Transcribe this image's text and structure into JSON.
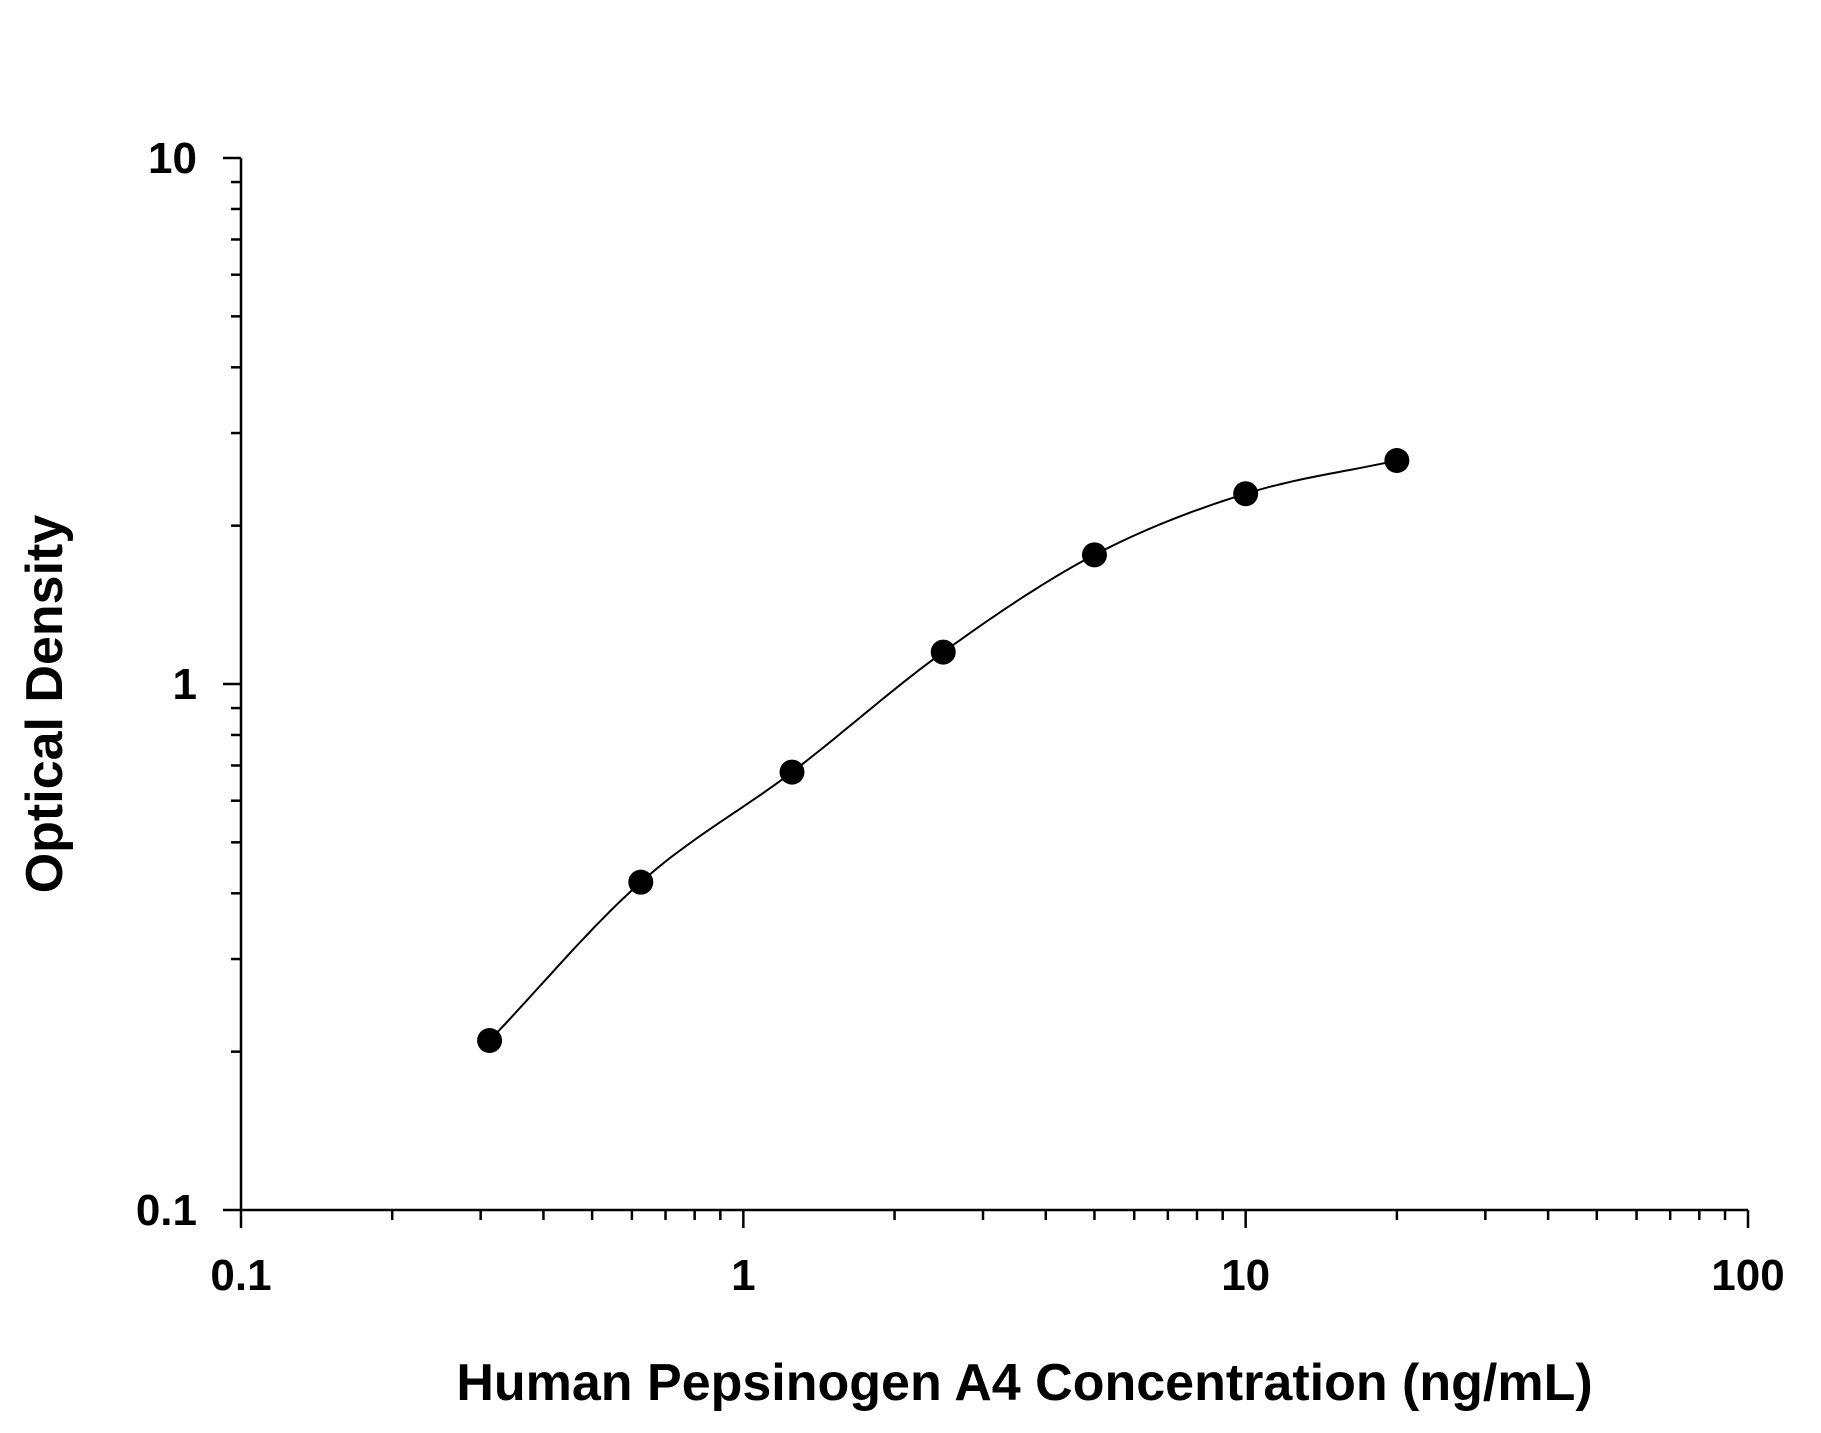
{
  "chart_data": {
    "type": "scatter",
    "title": "",
    "xlabel": "Human Pepsinogen A4 Concentration (ng/mL)",
    "ylabel": "Optical Density",
    "x_scale": "log",
    "y_scale": "log",
    "xlim": [
      0.1,
      100
    ],
    "ylim": [
      0.1,
      10
    ],
    "x_ticks": [
      "0.1",
      "1",
      "10",
      "100"
    ],
    "y_ticks": [
      "0.1",
      "1",
      "10"
    ],
    "grid": false,
    "legend": "none",
    "series": [
      {
        "points": [
          {
            "x": 0.3125,
            "y": 0.21
          },
          {
            "x": 0.625,
            "y": 0.42
          },
          {
            "x": 1.25,
            "y": 0.68
          },
          {
            "x": 2.5,
            "y": 1.15
          },
          {
            "x": 5,
            "y": 1.76
          },
          {
            "x": 10,
            "y": 2.3
          },
          {
            "x": 20,
            "y": 2.66
          }
        ],
        "fit": "4-parameter logistic curve"
      }
    ],
    "colors": {
      "marker": "#000000",
      "line": "#000000",
      "background": "#ffffff"
    }
  }
}
